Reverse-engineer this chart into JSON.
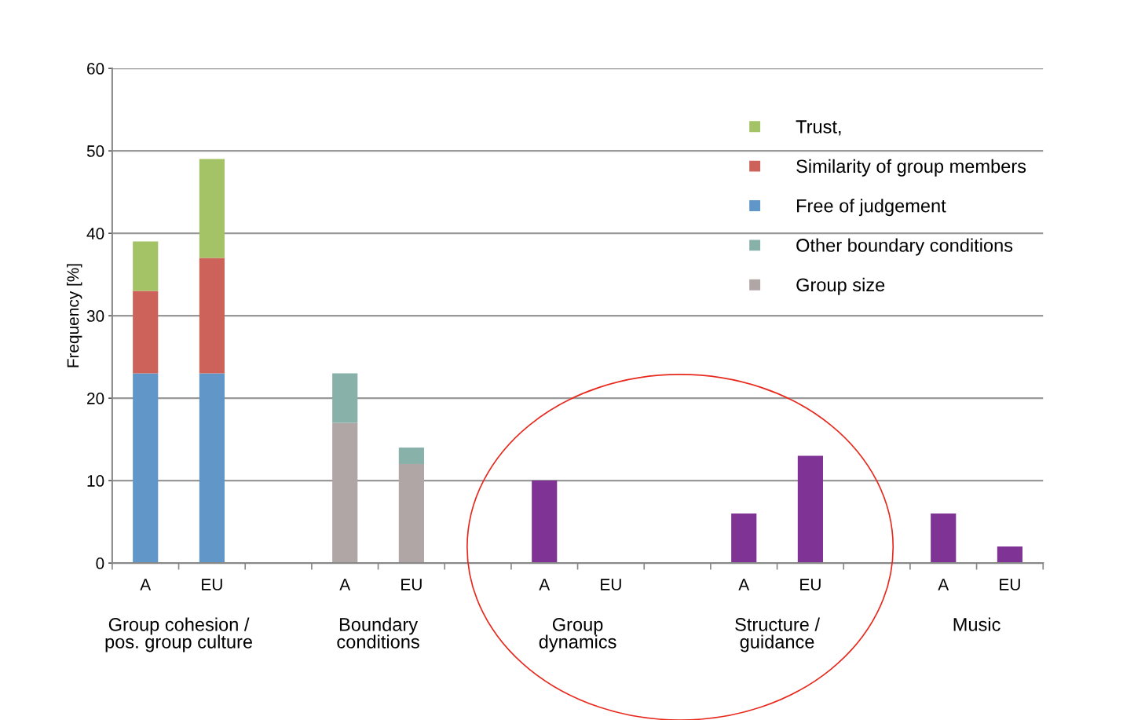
{
  "chart_data": {
    "type": "bar",
    "stacked": true,
    "ylabel": "Frequency [%]",
    "categories": [
      "A",
      "EU",
      null,
      "A",
      "EU",
      null,
      "A",
      "EU",
      null,
      "A",
      "EU",
      null,
      "A",
      "EU"
    ],
    "series": [
      {
        "name": "Free of judgement",
        "color": "#6096c8",
        "values": [
          23,
          23,
          null,
          null,
          null,
          null,
          null,
          null,
          null,
          null,
          null,
          null,
          null,
          null
        ]
      },
      {
        "name": "Similarity of group members",
        "color": "#cd625a",
        "values": [
          10,
          14,
          null,
          null,
          null,
          null,
          null,
          null,
          null,
          null,
          null,
          null,
          null,
          null
        ]
      },
      {
        "name": "Trust,",
        "color": "#a3c366",
        "values": [
          6,
          12,
          null,
          null,
          null,
          null,
          null,
          null,
          null,
          null,
          null,
          null,
          null,
          null
        ]
      },
      {
        "name": "Group size",
        "color": "#b1a6a6",
        "values": [
          null,
          null,
          null,
          17,
          12,
          null,
          null,
          null,
          null,
          null,
          null,
          null,
          null,
          null
        ]
      },
      {
        "name": "Other boundary conditions",
        "color": "#88b1aa",
        "values": [
          null,
          null,
          null,
          6,
          2,
          null,
          null,
          null,
          null,
          null,
          null,
          null,
          null,
          null
        ]
      },
      {
        "color": "#7f3495",
        "values": [
          null,
          null,
          null,
          null,
          null,
          null,
          10,
          0,
          null,
          6,
          13,
          null,
          6,
          2
        ]
      }
    ],
    "ylim": [
      0,
      60
    ],
    "yticks": [
      0,
      10,
      20,
      30,
      40,
      50,
      60
    ],
    "grid": "y",
    "legend": "top right",
    "annotations": [
      "Group cohesion /\npos. group culture",
      "Boundary\nconditions",
      "Group\ndynamics",
      "Structure /\nguidance",
      "Music"
    ]
  }
}
